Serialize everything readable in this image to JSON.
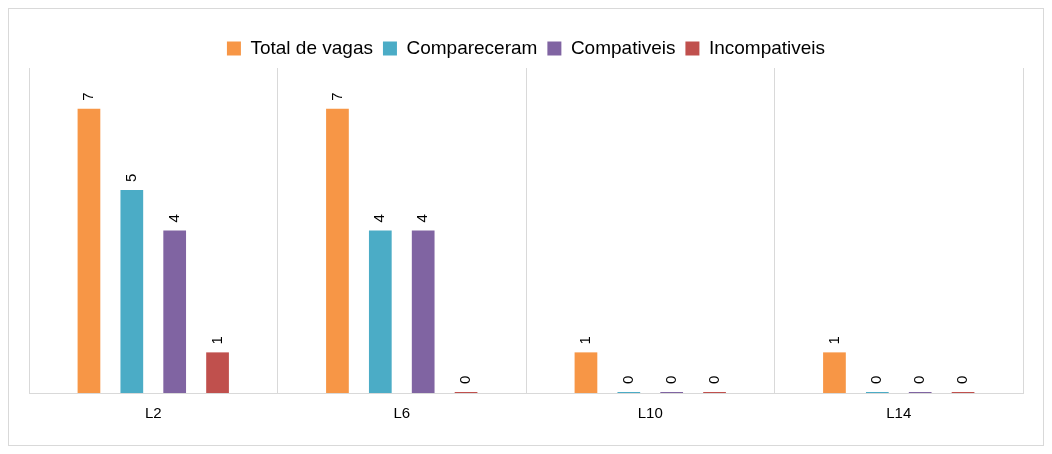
{
  "chart_data": {
    "type": "bar",
    "categories": [
      "L2",
      "L6",
      "L10",
      "L14"
    ],
    "series": [
      {
        "name": "Total de vagas",
        "color": "#f79646",
        "values": [
          7,
          7,
          1,
          1
        ]
      },
      {
        "name": "Compareceram",
        "color": "#4bacc6",
        "values": [
          5,
          4,
          0,
          0
        ]
      },
      {
        "name": "Compativeis",
        "color": "#8064a2",
        "values": [
          4,
          4,
          0,
          0
        ]
      },
      {
        "name": "Incompativeis",
        "color": "#c0504d",
        "values": [
          1,
          0,
          0,
          0
        ]
      }
    ],
    "ylim": [
      0,
      8
    ],
    "data_labels": true,
    "grid": "x",
    "legend": "top",
    "tick_labels": "x"
  }
}
